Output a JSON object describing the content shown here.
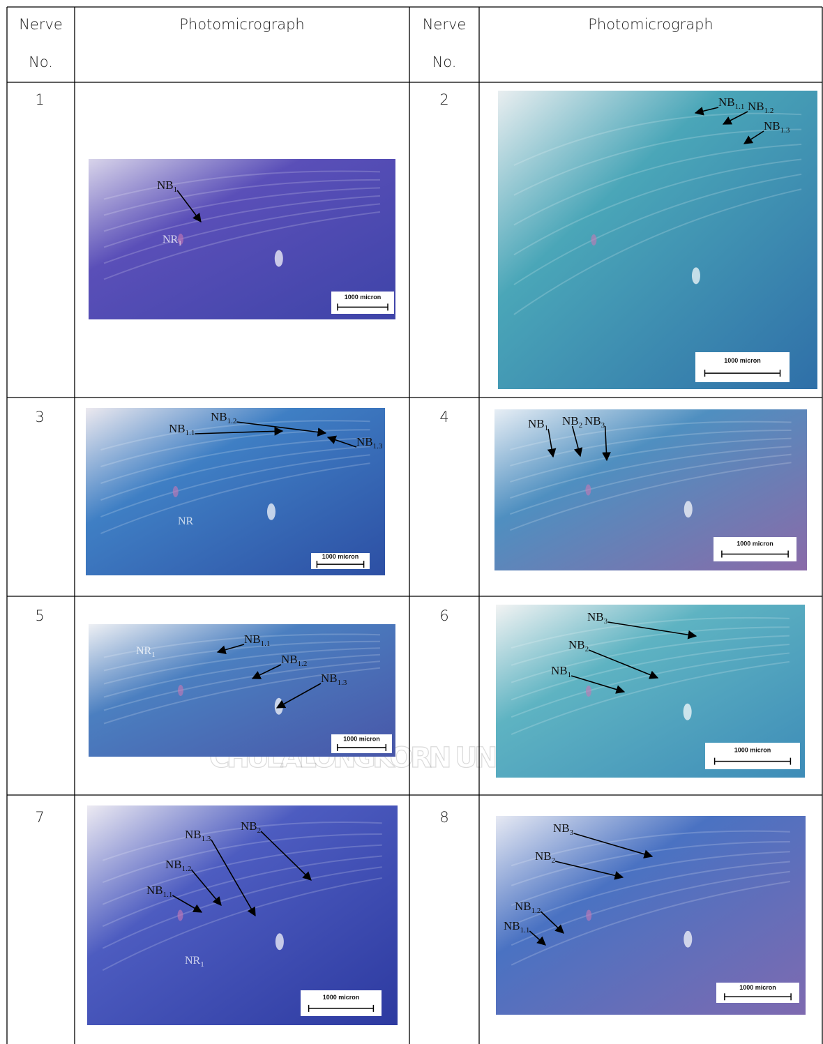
{
  "table": {
    "header": [
      [
        "Nerve",
        "No."
      ],
      "Photomicrograph",
      [
        "Nerve",
        "No."
      ],
      "Photomicrograph"
    ],
    "cells": [
      {
        "no": "1",
        "labels": [
          {
            "base": "NB",
            "sub": "1"
          },
          {
            "base": "NR",
            "sub": "1"
          }
        ],
        "scale": "1000 micron"
      },
      {
        "no": "2",
        "labels": [
          {
            "base": "NB",
            "sub": "1.1"
          },
          {
            "base": "NB",
            "sub": "1.2"
          },
          {
            "base": "NB",
            "sub": "1.3"
          }
        ],
        "scale": "1000 micron"
      },
      {
        "no": "3",
        "labels": [
          {
            "base": "NB",
            "sub": "1.2"
          },
          {
            "base": "NB",
            "sub": "1.1"
          },
          {
            "base": "NB",
            "sub": "1.3"
          },
          {
            "base": "NR"
          }
        ],
        "scale": "1000 micron"
      },
      {
        "no": "4",
        "labels": [
          {
            "base": "NB",
            "sub": "1"
          },
          {
            "base": "NB",
            "sub": "2"
          },
          {
            "base": "NB",
            "sub": "3"
          }
        ],
        "scale": "1000 micron"
      },
      {
        "no": "5",
        "labels": [
          {
            "base": "NB",
            "sub": "1.1"
          },
          {
            "base": "NB",
            "sub": "1.2"
          },
          {
            "base": "NB",
            "sub": "1.3"
          },
          {
            "base": "NR",
            "sub": "1"
          }
        ],
        "scale": "1000 micron"
      },
      {
        "no": "6",
        "labels": [
          {
            "base": "NB",
            "sub": "3"
          },
          {
            "base": "NB",
            "sub": "2"
          },
          {
            "base": "NB",
            "sub": "1"
          }
        ],
        "scale": "1000 micron"
      },
      {
        "no": "7",
        "labels": [
          {
            "base": "NB",
            "sub": "2"
          },
          {
            "base": "NB",
            "sub": "1.3"
          },
          {
            "base": "NB",
            "sub": "1.2"
          },
          {
            "base": "NB",
            "sub": "1.1"
          },
          {
            "base": "NR",
            "sub": "1"
          }
        ],
        "scale": "1000 micron"
      },
      {
        "no": "8",
        "labels": [
          {
            "base": "NB",
            "sub": "3"
          },
          {
            "base": "NB",
            "sub": "2"
          },
          {
            "base": "NB",
            "sub": "1.2"
          },
          {
            "base": "NB",
            "sub": "1.1"
          }
        ],
        "scale": "1000 micron"
      }
    ]
  },
  "watermark": "CHULALONGKORN UNIVERSITY"
}
